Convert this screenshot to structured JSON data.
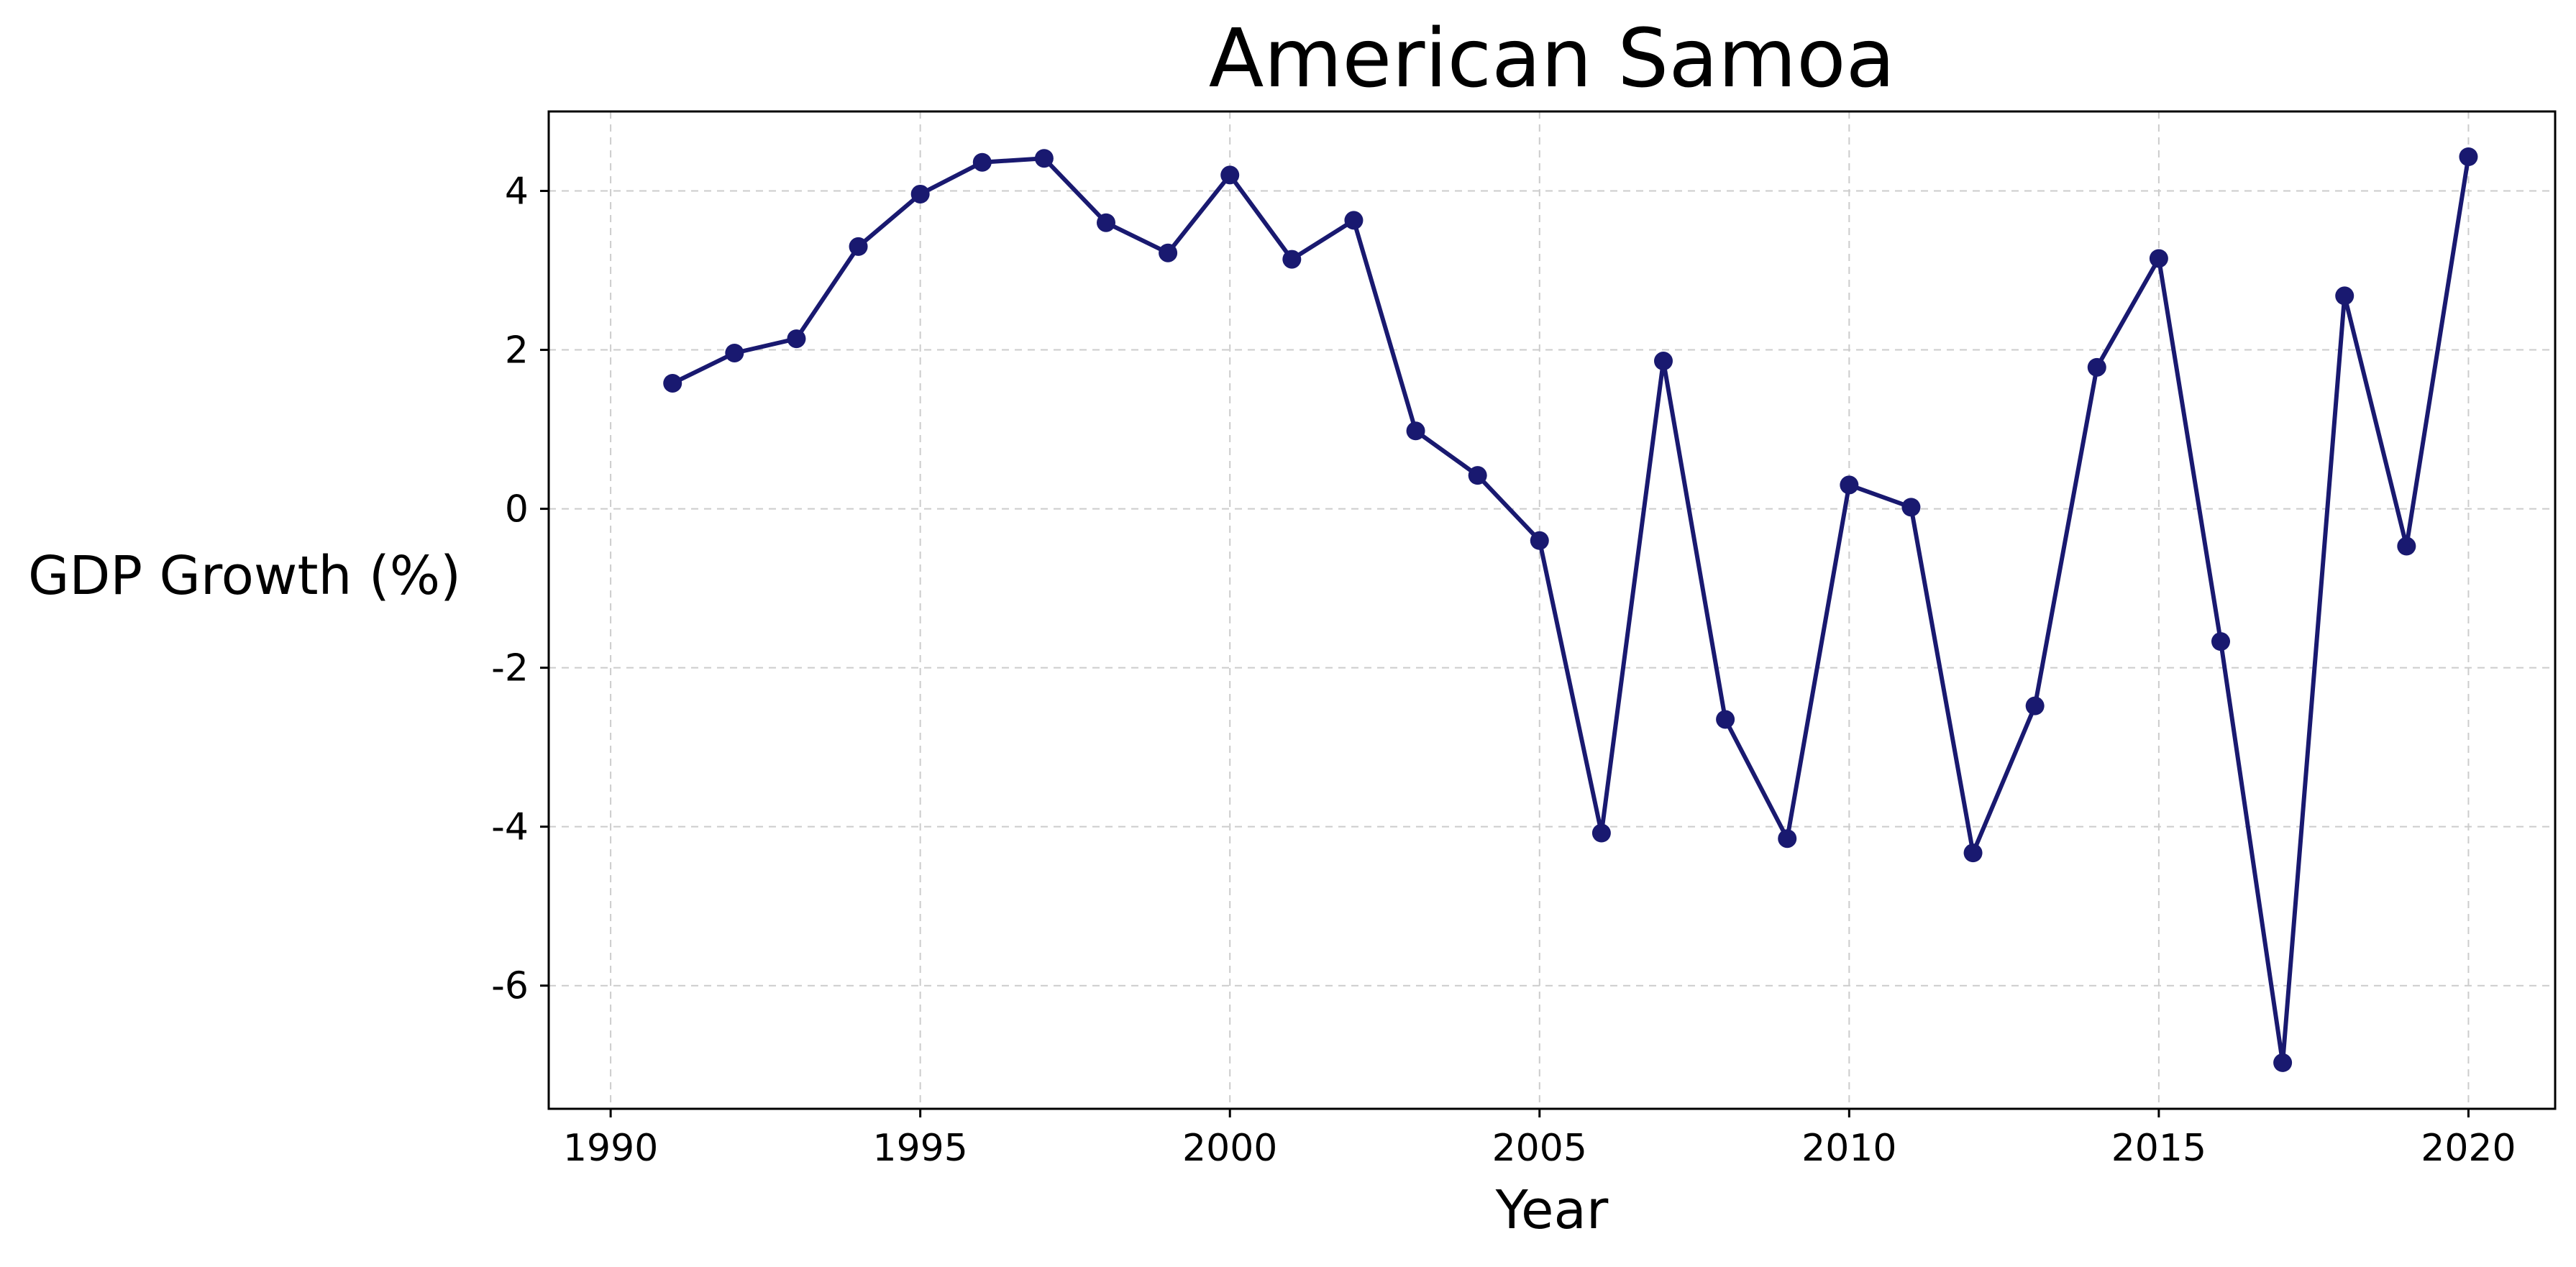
{
  "chart_data": {
    "type": "line",
    "title": "American Samoa",
    "xlabel": "Year",
    "ylabel": "GDP Growth (%)",
    "xlim": [
      1989.0,
      2021.4
    ],
    "ylim": [
      -7.55,
      5.0
    ],
    "grid": true,
    "legend": "none",
    "x_ticks": [
      1990,
      1995,
      2000,
      2005,
      2010,
      2015,
      2020
    ],
    "y_ticks": [
      -6,
      -4,
      -2,
      0,
      2,
      4
    ],
    "colors": {
      "line": "#191970",
      "grid": "#cccccc",
      "axes": "#000000"
    },
    "series": [
      {
        "x": [
          1991,
          1992,
          1993,
          1994,
          1995,
          1996,
          1997,
          1998,
          1999,
          2000,
          2001,
          2002,
          2003,
          2004,
          2005,
          2006,
          2007,
          2008,
          2009,
          2010,
          2011,
          2012,
          2013,
          2014,
          2015,
          2016,
          2017,
          2018,
          2019,
          2020
        ],
        "values": [
          1.58,
          1.96,
          2.14,
          3.3,
          3.96,
          4.36,
          4.41,
          3.6,
          3.22,
          4.2,
          3.14,
          3.63,
          0.98,
          0.42,
          -0.4,
          -4.08,
          1.86,
          -2.65,
          -4.15,
          0.3,
          0.02,
          -4.33,
          -2.48,
          1.78,
          3.15,
          -1.67,
          -6.97,
          2.68,
          -0.47,
          4.43
        ]
      }
    ]
  }
}
